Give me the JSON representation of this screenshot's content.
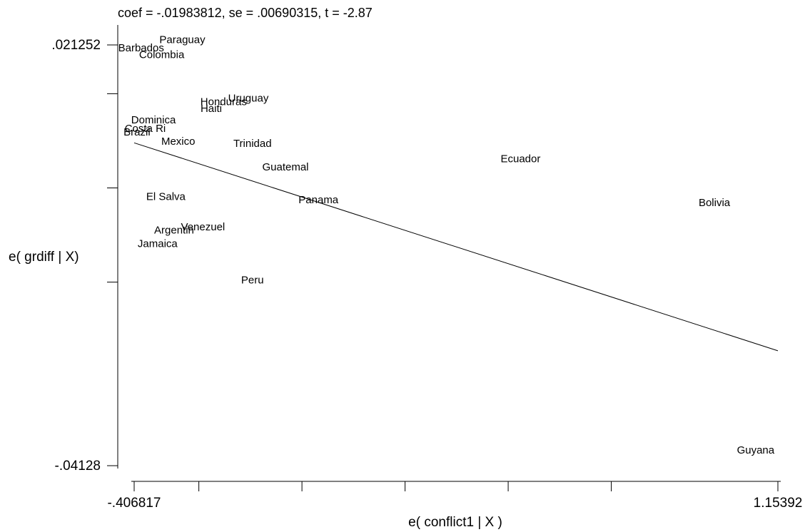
{
  "chart_data": {
    "type": "scatter",
    "title": "coef = -.01983812, se = .00690315, t = -2.87",
    "xlabel": "e( conflict1 | X )",
    "ylabel": "e( grdiff | X)",
    "xlim": [
      -0.406817,
      1.15392
    ],
    "ylim": [
      -0.04128,
      0.021252
    ],
    "x_tick_labels": [
      {
        "value": -0.406817,
        "label": "-.406817"
      },
      {
        "value": 1.15392,
        "label": "1.15392"
      }
    ],
    "x_minor_ticks": [
      -0.406817,
      -0.25,
      0.0,
      0.25,
      0.5,
      0.75,
      1.15392
    ],
    "y_tick_labels": [
      {
        "value": 0.021252,
        "label": ".021252"
      },
      {
        "value": -0.04128,
        "label": "-.04128"
      }
    ],
    "y_minor_ticks": [
      0.021252,
      0.014,
      0.0,
      -0.014,
      -0.04128
    ],
    "y_axis_mid_label_value": 0.0,
    "fit_line": {
      "slope": -0.01983812,
      "x0": -0.406817,
      "y0": 0.0067,
      "x1": 1.15392,
      "y1": -0.0242
    },
    "points": [
      {
        "label": "Barbados",
        "x": -0.39,
        "y": 0.0203
      },
      {
        "label": "Paraguay",
        "x": -0.29,
        "y": 0.0215
      },
      {
        "label": "Colombia",
        "x": -0.34,
        "y": 0.0193
      },
      {
        "label": "Uruguay",
        "x": -0.13,
        "y": 0.0128
      },
      {
        "label": "Honduras",
        "x": -0.19,
        "y": 0.0123
      },
      {
        "label": "Haiti",
        "x": -0.22,
        "y": 0.0113
      },
      {
        "label": "Dominica",
        "x": -0.36,
        "y": 0.0096
      },
      {
        "label": "Costa Ri",
        "x": -0.38,
        "y": 0.0083
      },
      {
        "label": "Brazil",
        "x": -0.4,
        "y": 0.0078
      },
      {
        "label": "Mexico",
        "x": -0.3,
        "y": 0.0064
      },
      {
        "label": "Trinidad",
        "x": -0.12,
        "y": 0.0061
      },
      {
        "label": "Ecuador",
        "x": 0.53,
        "y": 0.0038
      },
      {
        "label": "Guatemal",
        "x": -0.04,
        "y": 0.0026
      },
      {
        "label": "El Salva",
        "x": -0.33,
        "y": -0.0018
      },
      {
        "label": "Panama",
        "x": 0.04,
        "y": -0.0023
      },
      {
        "label": "Bolivia",
        "x": 1.0,
        "y": -0.0027
      },
      {
        "label": "Venezuel",
        "x": -0.24,
        "y": -0.0063
      },
      {
        "label": "Argentin",
        "x": -0.31,
        "y": -0.0068
      },
      {
        "label": "Jamaica",
        "x": -0.35,
        "y": -0.0088
      },
      {
        "label": "Peru",
        "x": -0.12,
        "y": -0.0142
      },
      {
        "label": "Guyana",
        "x": 1.1,
        "y": -0.0395
      }
    ]
  }
}
